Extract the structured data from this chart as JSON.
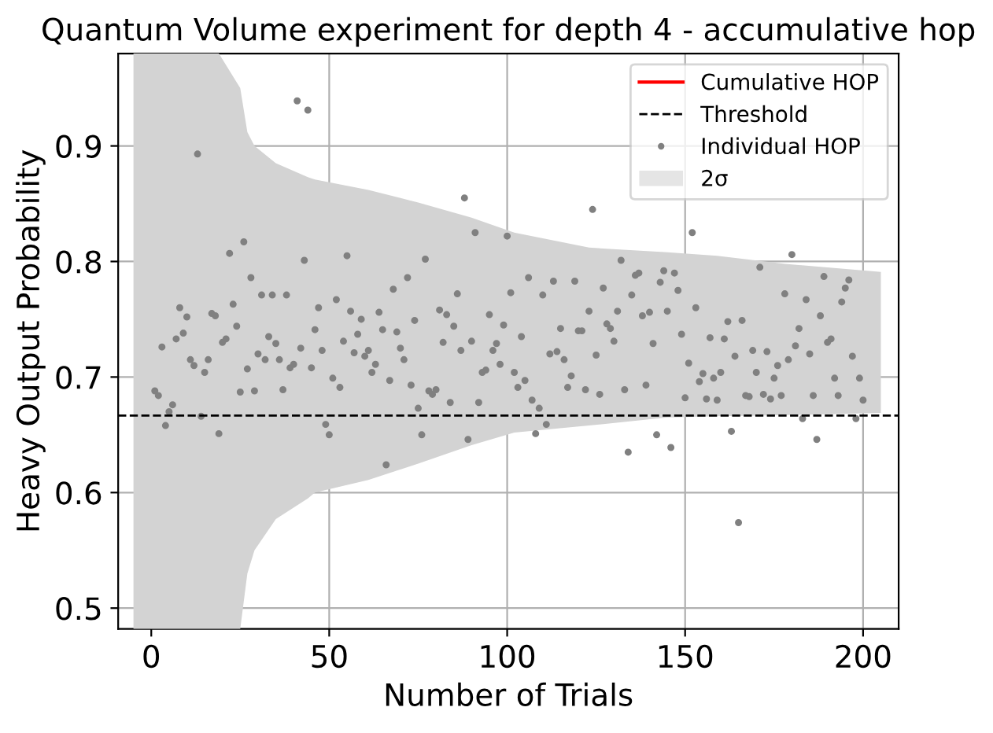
{
  "chart_data": {
    "type": "scatter",
    "title": "Quantum Volume experiment for depth 4 - accumulative hop",
    "xlabel": "Number of Trials",
    "ylabel": "Heavy Output Probability",
    "xlim": [
      -9.3,
      210
    ],
    "ylim": [
      0.482,
      0.98
    ],
    "xticks": [
      0,
      50,
      100,
      150,
      200
    ],
    "yticks": [
      0.5,
      0.6,
      0.7,
      0.8,
      0.9
    ],
    "grid": true,
    "legend": "top right",
    "ref_lines": [
      {
        "axis": "y",
        "value": 0.6667,
        "label": "Threshold",
        "color": "#000000",
        "line_style": "dashed"
      }
    ],
    "series": [
      {
        "name": "Cumulative HOP",
        "type": "line",
        "color": "#ff0000"
      },
      {
        "name": "Individual HOP",
        "color": "#808080",
        "marker": "circle",
        "x": [
          1,
          2,
          3,
          4,
          5,
          6,
          7,
          8,
          9,
          10,
          11,
          12,
          13,
          14,
          15,
          16,
          17,
          18,
          19,
          20,
          21,
          22,
          23,
          24,
          25,
          26,
          27,
          28,
          29,
          30,
          31,
          32,
          33,
          34,
          35,
          36,
          37,
          38,
          39,
          40,
          41,
          42,
          43,
          44,
          45,
          46,
          47,
          48,
          49,
          50,
          51,
          52,
          53,
          54,
          55,
          56,
          57,
          58,
          59,
          60,
          61,
          62,
          63,
          64,
          65,
          66,
          67,
          68,
          69,
          70,
          71,
          72,
          73,
          74,
          75,
          76,
          77,
          78,
          79,
          80,
          81,
          82,
          83,
          84,
          85,
          86,
          87,
          88,
          89,
          90,
          91,
          92,
          93,
          94,
          95,
          96,
          97,
          98,
          99,
          100,
          101,
          102,
          103,
          104,
          105,
          106,
          107,
          108,
          109,
          110,
          111,
          112,
          113,
          114,
          115,
          116,
          117,
          118,
          119,
          120,
          121,
          122,
          123,
          124,
          125,
          126,
          127,
          128,
          129,
          130,
          131,
          132,
          133,
          134,
          135,
          136,
          137,
          138,
          139,
          140,
          141,
          142,
          143,
          144,
          145,
          146,
          147,
          148,
          149,
          150,
          151,
          152,
          153,
          154,
          155,
          156,
          157,
          158,
          159,
          160,
          161,
          162,
          163,
          164,
          165,
          166,
          167,
          168,
          169,
          170,
          171,
          172,
          173,
          174,
          175,
          176,
          177,
          178,
          179,
          180,
          181,
          182,
          183,
          184,
          185,
          186,
          187,
          188,
          189,
          190,
          191,
          192,
          193,
          194,
          195,
          196,
          197,
          198,
          199,
          200
        ],
        "values": [
          0.688,
          0.684,
          0.726,
          0.658,
          0.67,
          0.676,
          0.733,
          0.76,
          0.738,
          0.752,
          0.715,
          0.71,
          0.893,
          0.666,
          0.704,
          0.715,
          0.755,
          0.753,
          0.651,
          0.73,
          0.733,
          0.807,
          0.763,
          0.744,
          0.687,
          0.817,
          0.707,
          0.786,
          0.688,
          0.72,
          0.771,
          0.715,
          0.735,
          0.771,
          0.729,
          0.715,
          0.689,
          0.771,
          0.708,
          0.711,
          0.939,
          0.725,
          0.801,
          0.931,
          0.708,
          0.741,
          0.76,
          0.723,
          0.659,
          0.65,
          0.699,
          0.767,
          0.691,
          0.731,
          0.805,
          0.757,
          0.721,
          0.737,
          0.75,
          0.718,
          0.723,
          0.704,
          0.711,
          0.756,
          0.741,
          0.624,
          0.697,
          0.776,
          0.739,
          0.725,
          0.715,
          0.786,
          0.693,
          0.749,
          0.673,
          0.65,
          0.802,
          0.688,
          0.685,
          0.689,
          0.758,
          0.73,
          0.754,
          0.678,
          0.744,
          0.772,
          0.723,
          0.855,
          0.646,
          0.731,
          0.825,
          0.678,
          0.704,
          0.706,
          0.754,
          0.723,
          0.729,
          0.711,
          0.745,
          0.822,
          0.773,
          0.704,
          0.691,
          0.735,
          0.697,
          0.786,
          0.68,
          0.651,
          0.673,
          0.771,
          0.659,
          0.72,
          0.783,
          0.722,
          0.742,
          0.715,
          0.691,
          0.701,
          0.783,
          0.74,
          0.74,
          0.689,
          0.757,
          0.845,
          0.719,
          0.685,
          0.777,
          0.746,
          0.742,
          0.731,
          0.757,
          0.801,
          0.689,
          0.635,
          0.771,
          0.788,
          0.79,
          0.753,
          0.693,
          0.756,
          0.729,
          0.65,
          0.782,
          0.792,
          0.757,
          0.639,
          0.79,
          0.775,
          0.737,
          0.682,
          0.712,
          0.825,
          0.76,
          0.696,
          0.703,
          0.681,
          0.734,
          0.699,
          0.68,
          0.704,
          0.733,
          0.748,
          0.653,
          0.718,
          0.574,
          0.749,
          0.684,
          0.683,
          0.723,
          0.704,
          0.795,
          0.685,
          0.722,
          0.681,
          0.699,
          0.71,
          0.684,
          0.772,
          0.715,
          0.806,
          0.727,
          0.742,
          0.664,
          0.767,
          0.72,
          0.684,
          0.646,
          0.753,
          0.787,
          0.73,
          0.733,
          0.699,
          0.684,
          0.765,
          0.777,
          0.784,
          0.718,
          0.664,
          0.699,
          0.68
        ]
      },
      {
        "name": "2σ",
        "type": "area",
        "color": "#d3d3d3",
        "x": [
          -5,
          19,
          25,
          27,
          29,
          35,
          44,
          46,
          61,
          75,
          90,
          102,
          123,
          145,
          159,
          178,
          205
        ],
        "values": [
          null,
          null,
          null,
          null,
          null,
          null,
          null,
          null,
          null,
          null,
          null,
          null,
          null,
          null,
          null,
          null,
          null
        ],
        "upper": [
          0.98,
          0.98,
          0.95,
          0.912,
          0.9,
          0.885,
          0.873,
          0.871,
          0.862,
          0.851,
          0.838,
          0.825,
          0.812,
          0.808,
          0.805,
          0.798,
          0.791
        ],
        "lower": [
          0.482,
          0.482,
          0.482,
          0.53,
          0.55,
          0.577,
          0.595,
          0.6,
          0.611,
          0.625,
          0.641,
          0.652,
          0.658,
          0.665,
          0.666,
          0.667,
          0.669
        ]
      }
    ]
  }
}
